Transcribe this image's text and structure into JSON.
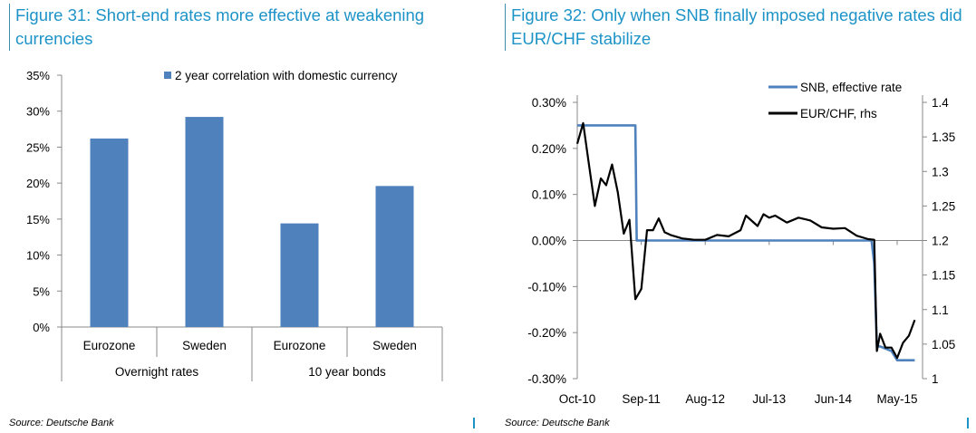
{
  "figures": [
    {
      "title": "Figure 31: Short-end rates more effective at weakening currencies",
      "source": "Source: Deutsche Bank"
    },
    {
      "title": "Figure 32: Only when SNB finally imposed negative rates did EUR/CHF stabilize",
      "source": "Source: Deutsche Bank"
    }
  ],
  "chart_data": [
    {
      "type": "bar",
      "categories": [
        "Eurozone",
        "Sweden",
        "Eurozone",
        "Sweden"
      ],
      "groups": [
        {
          "label": "Overnight rates",
          "span": 2
        },
        {
          "label": "10 year bonds",
          "span": 2
        }
      ],
      "series": [
        {
          "name": "2 year correlation with domestic currency",
          "values": [
            26.2,
            29.2,
            14.4,
            19.6
          ],
          "color": "#4f81bd"
        }
      ],
      "ylim": [
        0,
        35
      ],
      "yticks": [
        "0%",
        "5%",
        "10%",
        "15%",
        "20%",
        "25%",
        "30%",
        "35%"
      ],
      "grid": false,
      "legend": "top"
    },
    {
      "type": "line",
      "xticks": [
        "Oct-10",
        "Sep-11",
        "Aug-12",
        "Jul-13",
        "Jun-14",
        "May-15"
      ],
      "ylim_left": [
        -0.3,
        0.3
      ],
      "yticks_left": [
        "0.30%",
        "0.20%",
        "0.10%",
        "0.00%",
        "-0.10%",
        "-0.20%",
        "-0.30%"
      ],
      "ylim_right": [
        1.0,
        1.4
      ],
      "yticks_right": [
        "1.4",
        "1.35",
        "1.3",
        "1.25",
        "1.2",
        "1.15",
        "1.1",
        "1.05",
        "1"
      ],
      "grid": false,
      "legend": "top-right",
      "series": [
        {
          "name": "SNB, effective rate",
          "axis": "left",
          "color": "#4f81bd",
          "x": [
            "2010-10",
            "2011-08-01",
            "2011-08-08",
            "2012-06",
            "2014-12-18",
            "2015-01-01",
            "2015-01-15",
            "2015-02",
            "2015-04",
            "2015-05",
            "2015-06",
            "2015-08"
          ],
          "values": [
            0.25,
            0.25,
            0.0,
            0.0,
            0.0,
            -0.05,
            -0.23,
            -0.23,
            -0.24,
            -0.26,
            -0.26,
            -0.26
          ]
        },
        {
          "name": "EUR/CHF, rhs",
          "axis": "right",
          "color": "#000000",
          "x": [
            "2010-10",
            "2010-11",
            "2010-12",
            "2011-01",
            "2011-02",
            "2011-03",
            "2011-04",
            "2011-05",
            "2011-06",
            "2011-07",
            "2011-08",
            "2011-09",
            "2011-10",
            "2011-11",
            "2011-12",
            "2012-01",
            "2012-02",
            "2012-04",
            "2012-06",
            "2012-08",
            "2012-10",
            "2012-12",
            "2013-02",
            "2013-03",
            "2013-05",
            "2013-06",
            "2013-07",
            "2013-08",
            "2013-10",
            "2013-12",
            "2014-02",
            "2014-04",
            "2014-06",
            "2014-08",
            "2014-10",
            "2014-12",
            "2015-01-01",
            "2015-01-15",
            "2015-02",
            "2015-03",
            "2015-04",
            "2015-05",
            "2015-06",
            "2015-07",
            "2015-08"
          ],
          "values": [
            1.34,
            1.37,
            1.31,
            1.25,
            1.29,
            1.28,
            1.31,
            1.27,
            1.21,
            1.23,
            1.115,
            1.13,
            1.215,
            1.215,
            1.232,
            1.212,
            1.208,
            1.203,
            1.201,
            1.201,
            1.208,
            1.206,
            1.215,
            1.236,
            1.221,
            1.238,
            1.233,
            1.236,
            1.226,
            1.233,
            1.229,
            1.219,
            1.217,
            1.218,
            1.207,
            1.202,
            1.201,
            1.04,
            1.065,
            1.045,
            1.045,
            1.03,
            1.052,
            1.062,
            1.085
          ]
        }
      ]
    }
  ]
}
